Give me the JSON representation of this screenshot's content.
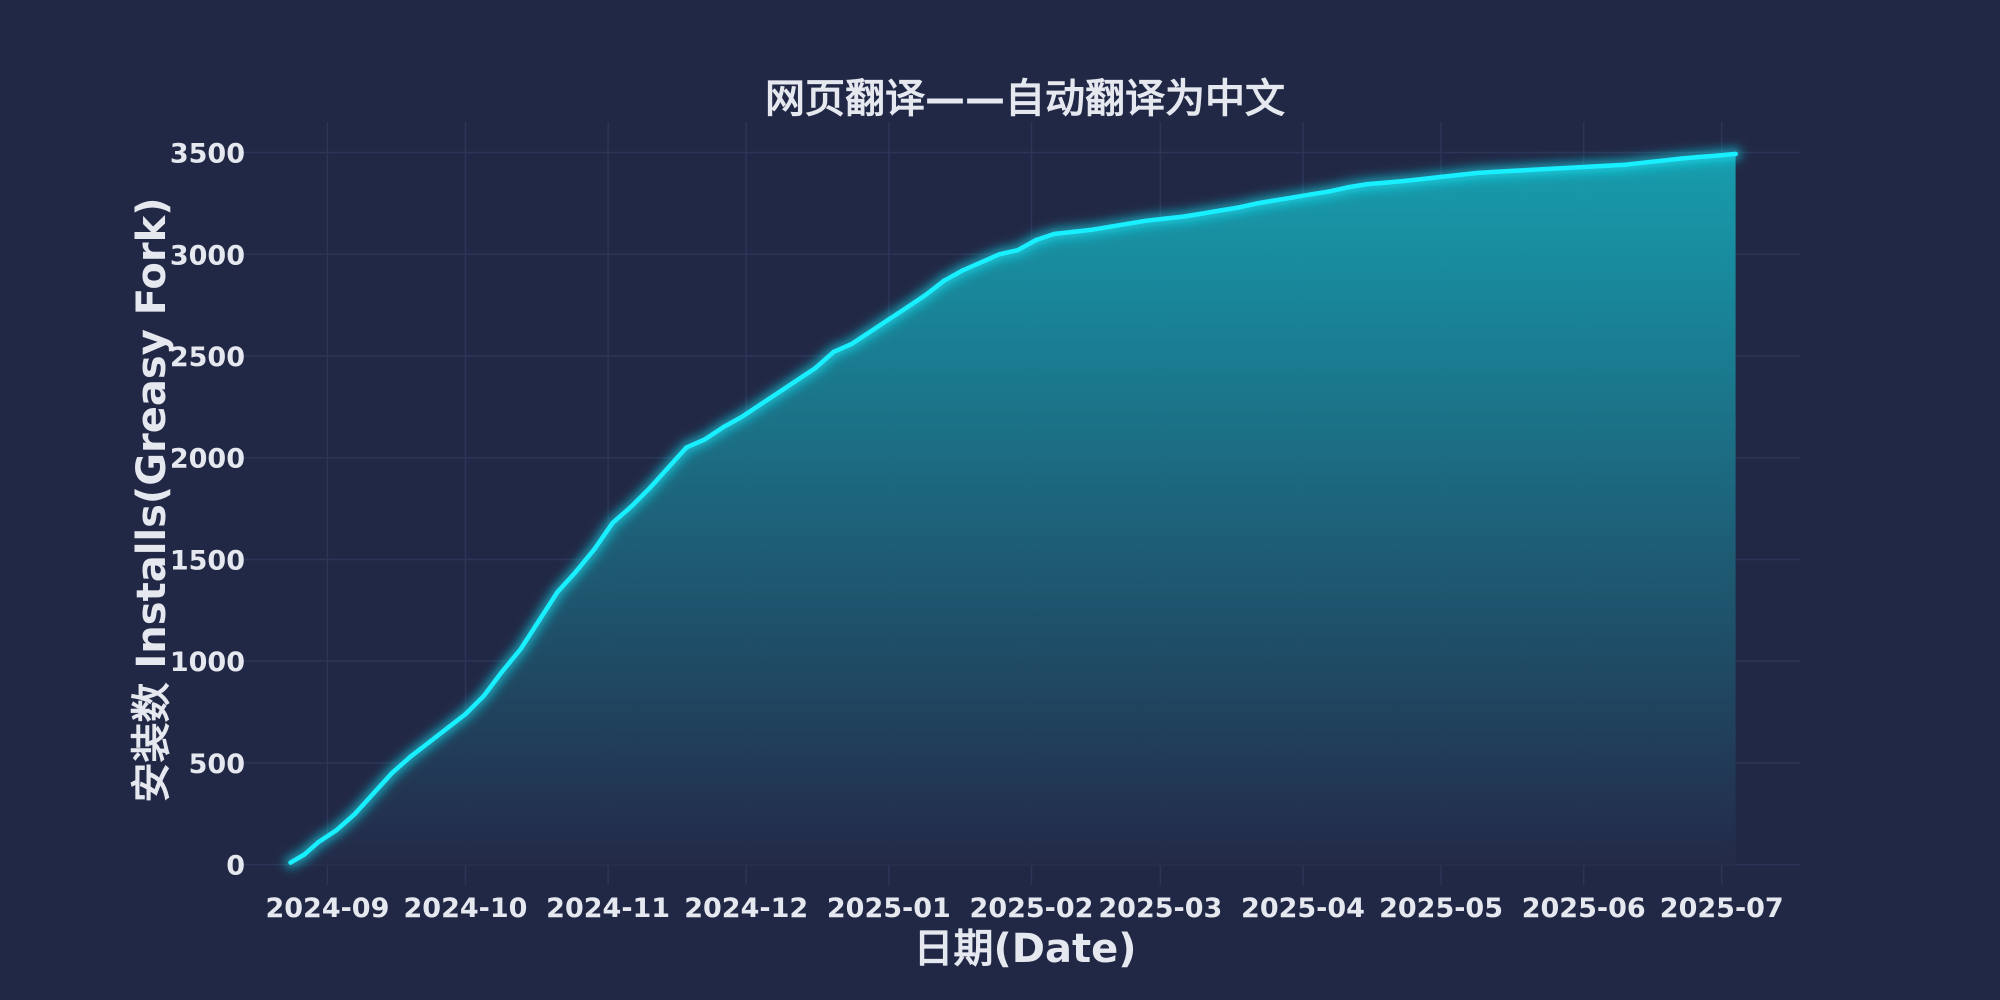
{
  "chart_data": {
    "type": "area",
    "title": "网页翻译——自动翻译为中文",
    "xlabel": "日期(Date)",
    "ylabel": "安装数 Installs(Greasy Fork)",
    "xlim": [
      "2024-08-13",
      "2025-07-18"
    ],
    "ylim": [
      -100,
      3650
    ],
    "yticks": [
      0,
      500,
      1000,
      1500,
      2000,
      2500,
      3000,
      3500
    ],
    "xticks": [
      {
        "date": "2024-09-01",
        "label": "2024-09"
      },
      {
        "date": "2024-10-01",
        "label": "2024-10"
      },
      {
        "date": "2024-11-01",
        "label": "2024-11"
      },
      {
        "date": "2024-12-01",
        "label": "2024-12"
      },
      {
        "date": "2025-01-01",
        "label": "2025-01"
      },
      {
        "date": "2025-02-01",
        "label": "2025-02"
      },
      {
        "date": "2025-03-01",
        "label": "2025-03"
      },
      {
        "date": "2025-04-01",
        "label": "2025-04"
      },
      {
        "date": "2025-05-01",
        "label": "2025-05"
      },
      {
        "date": "2025-06-01",
        "label": "2025-06"
      },
      {
        "date": "2025-07-01",
        "label": "2025-07"
      }
    ],
    "grid": true,
    "colors": {
      "line": "#19f0ff",
      "fill_top": "#16a3b3",
      "fill_bottom": "#232a48"
    },
    "series": [
      {
        "x": [
          "2024-08-24",
          "2024-08-27",
          "2024-08-30",
          "2024-09-03",
          "2024-09-07",
          "2024-09-11",
          "2024-09-15",
          "2024-09-19",
          "2024-09-23",
          "2024-09-27",
          "2024-10-01",
          "2024-10-05",
          "2024-10-09",
          "2024-10-13",
          "2024-10-17",
          "2024-10-21",
          "2024-10-25",
          "2024-10-29",
          "2024-11-02",
          "2024-11-06",
          "2024-11-10",
          "2024-11-14",
          "2024-11-18",
          "2024-11-22",
          "2024-11-26",
          "2024-11-30",
          "2024-12-04",
          "2024-12-08",
          "2024-12-12",
          "2024-12-16",
          "2024-12-20",
          "2024-12-24",
          "2024-12-28",
          "2025-01-01",
          "2025-01-05",
          "2025-01-09",
          "2025-01-13",
          "2025-01-17",
          "2025-01-21",
          "2025-01-25",
          "2025-01-29",
          "2025-02-02",
          "2025-02-06",
          "2025-02-10",
          "2025-02-14",
          "2025-02-18",
          "2025-02-22",
          "2025-02-26",
          "2025-03-02",
          "2025-03-06",
          "2025-03-10",
          "2025-03-14",
          "2025-03-18",
          "2025-03-22",
          "2025-03-26",
          "2025-03-30",
          "2025-04-03",
          "2025-04-07",
          "2025-04-11",
          "2025-04-15",
          "2025-04-19",
          "2025-04-23",
          "2025-04-27",
          "2025-05-01",
          "2025-05-05",
          "2025-05-09",
          "2025-05-13",
          "2025-05-17",
          "2025-05-21",
          "2025-05-25",
          "2025-05-29",
          "2025-06-02",
          "2025-06-06",
          "2025-06-10",
          "2025-06-14",
          "2025-06-18",
          "2025-06-22",
          "2025-06-26",
          "2025-06-30",
          "2025-07-04"
        ],
        "y": [
          10,
          50,
          110,
          170,
          250,
          350,
          450,
          530,
          600,
          670,
          740,
          830,
          950,
          1060,
          1200,
          1340,
          1440,
          1550,
          1680,
          1760,
          1850,
          1950,
          2050,
          2090,
          2150,
          2200,
          2260,
          2320,
          2380,
          2440,
          2520,
          2560,
          2620,
          2680,
          2740,
          2800,
          2870,
          2920,
          2960,
          3000,
          3020,
          3070,
          3100,
          3110,
          3120,
          3135,
          3150,
          3165,
          3175,
          3185,
          3200,
          3215,
          3230,
          3250,
          3265,
          3280,
          3295,
          3310,
          3330,
          3345,
          3352,
          3360,
          3370,
          3380,
          3390,
          3400,
          3405,
          3410,
          3415,
          3420,
          3425,
          3430,
          3435,
          3440,
          3450,
          3460,
          3470,
          3478,
          3485,
          3493
        ]
      }
    ]
  }
}
